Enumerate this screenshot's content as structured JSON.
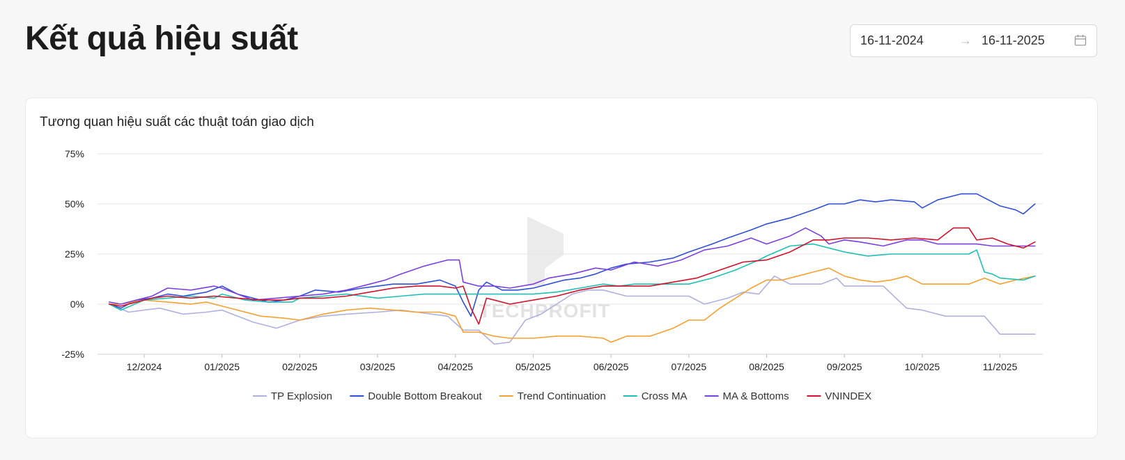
{
  "header": {
    "title": "Kết quả hiệu suất"
  },
  "date_range": {
    "start": "16-11-2024",
    "end": "16-11-2025",
    "separator_icon": "arrow-right-icon",
    "calendar_icon": "calendar-icon"
  },
  "card": {
    "title": "Tương quan hiệu suất các thuật toán giao dịch"
  },
  "watermark": {
    "text": "TECHPROFIT",
    "icon": "techprofit-logo-icon"
  },
  "chart_data": {
    "type": "line",
    "title": "Tương quan hiệu suất các thuật toán giao dịch",
    "xlabel": "",
    "ylabel": "",
    "x_ticks": [
      "12/2024",
      "01/2025",
      "02/2025",
      "03/2025",
      "04/2025",
      "05/2025",
      "06/2025",
      "07/2025",
      "08/2025",
      "09/2025",
      "10/2025",
      "11/2025"
    ],
    "y_ticks": [
      "75%",
      "50%",
      "25%",
      "0%",
      "-25%"
    ],
    "y_tick_values": [
      75,
      50,
      25,
      0,
      -25
    ],
    "ylim": [
      -25,
      75
    ],
    "xlim": [
      -0.6,
      11.55
    ],
    "grid": true,
    "legend_position": "bottom-center",
    "series": [
      {
        "name": "TP Explosion",
        "color": "#b0b0e0",
        "x": [
          -0.45,
          -0.2,
          0,
          0.2,
          0.5,
          0.8,
          1,
          1.2,
          1.4,
          1.7,
          2,
          2.3,
          2.6,
          3,
          3.3,
          3.5,
          3.7,
          3.9,
          4.1,
          4.3,
          4.5,
          4.7,
          4.9,
          5.1,
          5.3,
          5.5,
          5.7,
          5.9,
          6.2,
          6.5,
          6.8,
          7,
          7.2,
          7.5,
          7.7,
          7.9,
          8.1,
          8.3,
          8.5,
          8.7,
          8.9,
          9,
          9.2,
          9.5,
          9.8,
          10,
          10.3,
          10.5,
          10.8,
          11,
          11.2,
          11.45
        ],
        "y": [
          0,
          -4,
          -3,
          -2,
          -5,
          -4,
          -3,
          -6,
          -9,
          -12,
          -8,
          -6,
          -5,
          -4,
          -3,
          -4,
          -5,
          -6,
          -13,
          -13,
          -20,
          -19,
          -8,
          -5,
          0,
          5,
          7,
          7,
          4,
          4,
          4,
          4,
          0,
          3,
          6,
          5,
          14,
          10,
          10,
          10,
          13,
          9,
          9,
          9,
          -2,
          -3,
          -6,
          -6,
          -6,
          -15,
          -15,
          -15
        ]
      },
      {
        "name": "Double Bottom Breakout",
        "color": "#2e4fd8",
        "x": [
          -0.45,
          -0.3,
          -0.1,
          0.1,
          0.3,
          0.5,
          0.8,
          1,
          1.2,
          1.4,
          1.6,
          1.8,
          2,
          2.2,
          2.5,
          2.8,
          3,
          3.2,
          3.5,
          3.8,
          4,
          4.1,
          4.2,
          4.3,
          4.4,
          4.5,
          4.6,
          4.8,
          5,
          5.2,
          5.4,
          5.6,
          5.8,
          6,
          6.2,
          6.5,
          6.8,
          7,
          7.3,
          7.5,
          7.8,
          8,
          8.3,
          8.6,
          8.8,
          9,
          9.2,
          9.4,
          9.6,
          9.9,
          10,
          10.2,
          10.5,
          10.7,
          10.9,
          11,
          11.2,
          11.3,
          11.45
        ],
        "y": [
          0,
          -2,
          2,
          3,
          5,
          4,
          6,
          9,
          5,
          3,
          1,
          2,
          4,
          7,
          6,
          8,
          9,
          10,
          10,
          12,
          9,
          1,
          -6,
          7,
          11,
          9,
          7,
          7,
          8,
          10,
          12,
          13,
          15,
          18,
          20,
          21,
          23,
          26,
          30,
          33,
          37,
          40,
          43,
          47,
          50,
          50,
          52,
          51,
          52,
          51,
          48,
          52,
          55,
          55,
          51,
          49,
          47,
          45,
          50
        ]
      },
      {
        "name": "Trend Continuation",
        "color": "#f5a030",
        "x": [
          -0.45,
          -0.3,
          0,
          0.3,
          0.6,
          0.8,
          1,
          1.2,
          1.5,
          1.8,
          2,
          2.3,
          2.6,
          2.9,
          3.2,
          3.5,
          3.8,
          4,
          4.1,
          4.3,
          4.5,
          4.7,
          5,
          5.3,
          5.6,
          5.9,
          6,
          6.2,
          6.5,
          6.8,
          7,
          7.2,
          7.4,
          7.6,
          7.8,
          8,
          8.2,
          8.4,
          8.6,
          8.8,
          9,
          9.2,
          9.4,
          9.6,
          9.8,
          10,
          10.3,
          10.6,
          10.8,
          11,
          11.2,
          11.45
        ],
        "y": [
          0,
          0,
          2,
          1,
          0,
          1,
          -1,
          -3,
          -6,
          -7,
          -8,
          -5,
          -3,
          -2,
          -3,
          -4,
          -4,
          -6,
          -14,
          -14,
          -16,
          -17,
          -17,
          -16,
          -16,
          -17,
          -19,
          -16,
          -16,
          -12,
          -8,
          -8,
          -2,
          3,
          8,
          12,
          12,
          14,
          16,
          18,
          14,
          12,
          11,
          12,
          14,
          10,
          10,
          10,
          13,
          10,
          12,
          14
        ]
      },
      {
        "name": "Cross MA",
        "color": "#1fbfb5",
        "x": [
          -0.45,
          -0.3,
          0,
          0.3,
          0.6,
          0.9,
          1,
          1.3,
          1.6,
          1.9,
          2,
          2.3,
          2.6,
          3,
          3.3,
          3.6,
          4,
          4.1,
          4.3,
          4.5,
          4.7,
          5,
          5.3,
          5.6,
          5.9,
          6.1,
          6.3,
          6.6,
          6.9,
          7,
          7.3,
          7.6,
          7.9,
          8,
          8.3,
          8.6,
          8.9,
          9,
          9.3,
          9.6,
          10,
          10.3,
          10.6,
          10.7,
          10.8,
          10.9,
          11,
          11.3,
          11.45
        ],
        "y": [
          0,
          -3,
          2,
          3,
          4,
          3,
          5,
          2,
          1,
          1,
          3,
          4,
          5,
          3,
          4,
          5,
          5,
          5,
          5,
          5,
          5,
          5,
          6,
          8,
          10,
          9,
          10,
          10,
          10,
          10,
          13,
          17,
          22,
          24,
          29,
          30,
          27,
          26,
          24,
          25,
          25,
          25,
          25,
          27,
          16,
          15,
          13,
          12,
          14
        ]
      },
      {
        "name": "MA & Bottoms",
        "color": "#7a3fe0",
        "x": [
          -0.45,
          -0.3,
          -0.1,
          0.1,
          0.3,
          0.6,
          0.9,
          1,
          1.2,
          1.4,
          1.7,
          2,
          2.3,
          2.6,
          2.9,
          3.1,
          3.3,
          3.6,
          3.9,
          4.05,
          4.1,
          4.3,
          4.5,
          4.7,
          5,
          5.2,
          5.5,
          5.8,
          6,
          6.3,
          6.6,
          6.9,
          7.2,
          7.5,
          7.8,
          8,
          8.3,
          8.5,
          8.7,
          8.8,
          9,
          9.2,
          9.5,
          9.8,
          10,
          10.2,
          10.5,
          10.7,
          10.9,
          11,
          11.2,
          11.45
        ],
        "y": [
          1,
          0,
          2,
          4,
          8,
          7,
          9,
          8,
          5,
          2,
          3,
          4,
          5,
          7,
          10,
          12,
          15,
          19,
          22,
          22,
          11,
          9,
          9,
          8,
          10,
          13,
          15,
          18,
          17,
          21,
          19,
          22,
          27,
          29,
          33,
          30,
          34,
          38,
          34,
          30,
          32,
          31,
          29,
          32,
          32,
          30,
          30,
          30,
          29,
          29,
          29,
          29
        ]
      },
      {
        "name": "VNINDEX",
        "color": "#d1102a",
        "x": [
          -0.45,
          -0.3,
          -0.1,
          0.1,
          0.3,
          0.6,
          0.9,
          1.2,
          1.5,
          1.8,
          2,
          2.3,
          2.6,
          2.9,
          3.2,
          3.5,
          3.8,
          4,
          4.1,
          4.2,
          4.3,
          4.4,
          4.5,
          4.7,
          5,
          5.3,
          5.6,
          5.9,
          6.2,
          6.5,
          6.8,
          7.1,
          7.4,
          7.7,
          8,
          8.3,
          8.6,
          8.8,
          9,
          9.3,
          9.6,
          9.9,
          10.2,
          10.4,
          10.6,
          10.7,
          10.9,
          11.1,
          11.3,
          11.45
        ],
        "y": [
          0,
          -1,
          1,
          3,
          4,
          3,
          4,
          3,
          2,
          2,
          3,
          3,
          4,
          6,
          8,
          9,
          9,
          8,
          9,
          -2,
          -10,
          3,
          2,
          0,
          2,
          4,
          7,
          9,
          9,
          9,
          11,
          13,
          17,
          21,
          22,
          26,
          32,
          32,
          33,
          33,
          32,
          33,
          32,
          38,
          38,
          32,
          33,
          30,
          28,
          31
        ]
      }
    ]
  }
}
